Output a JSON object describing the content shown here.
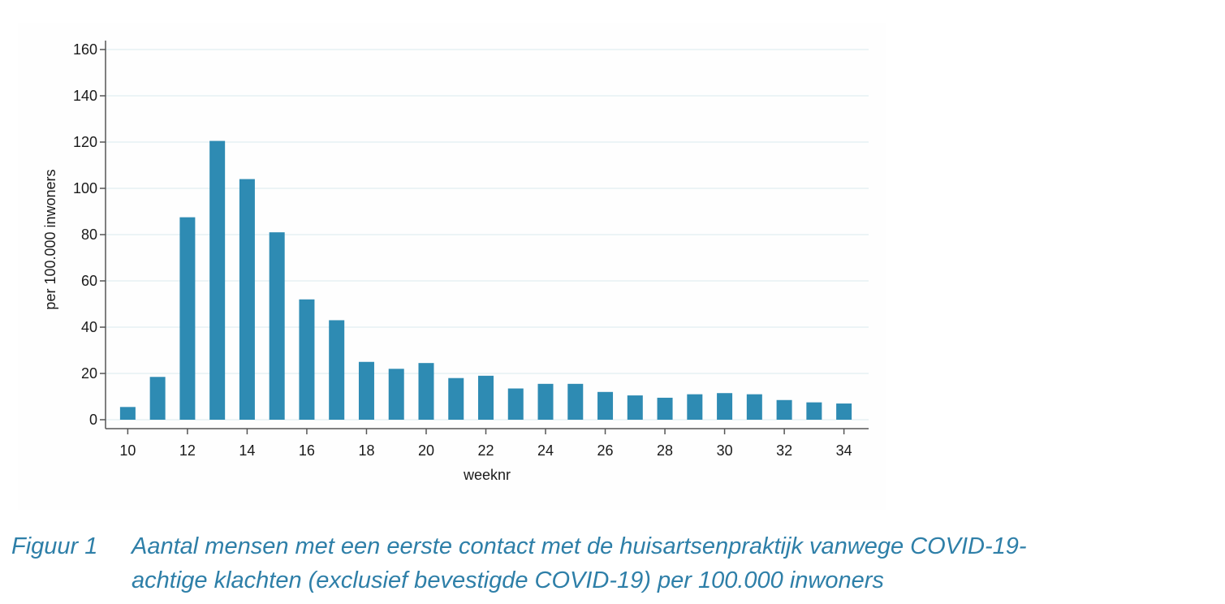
{
  "chart_data": {
    "type": "bar",
    "x": [
      10,
      11,
      12,
      13,
      14,
      15,
      16,
      17,
      18,
      19,
      20,
      21,
      22,
      23,
      24,
      25,
      26,
      27,
      28,
      29,
      30,
      31,
      32,
      33,
      34
    ],
    "values": [
      5.5,
      18.5,
      87.5,
      120.5,
      104,
      81,
      52,
      43,
      25,
      22,
      24.5,
      18,
      19,
      13.5,
      15.5,
      15.5,
      12,
      10.5,
      9.5,
      11,
      11.5,
      11,
      8.5,
      7.5,
      7
    ],
    "xticks": [
      "10",
      "12",
      "14",
      "16",
      "18",
      "20",
      "22",
      "24",
      "26",
      "28",
      "30",
      "32",
      "34"
    ],
    "yticks": [
      "0",
      "20",
      "40",
      "60",
      "80",
      "100",
      "120",
      "140",
      "160"
    ],
    "xlabel": "weeknr",
    "ylabel": "per 100.000 inwoners",
    "ylim": [
      0,
      160
    ],
    "xlim": [
      9.5,
      34.5
    ],
    "grid": true,
    "colors": {
      "bar": "#2e8bb3",
      "grid": "#e6f0f4",
      "axis": "#555555"
    }
  },
  "caption": {
    "label": "Figuur 1",
    "line1": "Aantal mensen met een eerste contact met de huisartsenpraktijk vanwege COVID-19-",
    "line2": "achtige klachten (exclusief bevestigde COVID-19) per 100.000 inwoners"
  }
}
